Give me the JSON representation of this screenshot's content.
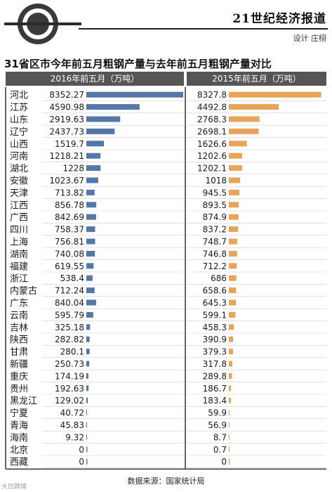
{
  "header": {
    "paper_name": "21世纪经济报道",
    "credit": "设计 庄栩",
    "watermark": "大凹跨境"
  },
  "chart_data": {
    "type": "bar",
    "title": "31省区市今年前五月粗钢产量与去年前五月粗钢产量对比",
    "categories": [
      "河北",
      "江苏",
      "山东",
      "辽宁",
      "山西",
      "河南",
      "湖北",
      "安徽",
      "天津",
      "江西",
      "广西",
      "四川",
      "上海",
      "湖南",
      "福建",
      "浙江",
      "内蒙古",
      "广东",
      "云南",
      "吉林",
      "陕西",
      "甘肃",
      "新疆",
      "重庆",
      "贵州",
      "黑龙江",
      "宁夏",
      "青海",
      "海南",
      "北京",
      "西藏"
    ],
    "series": [
      {
        "name": "2016年前五月（万吨）",
        "labels": [
          "8352.27",
          "4590.98",
          "2919.63",
          "2437.73",
          "1519.7",
          "1218.21",
          "1228",
          "1023.67",
          "713.82",
          "856.78",
          "842.69",
          "758.37",
          "756.81",
          "740.08",
          "619.55",
          "538.4",
          "712.24",
          "840.04",
          "595.79",
          "325.18",
          "282.82",
          "280.1",
          "250.73",
          "174.19",
          "192.63",
          "129.02",
          "40.72",
          "45.83",
          "9.32",
          "0",
          "0"
        ],
        "values": [
          8352.27,
          4590.98,
          2919.63,
          2437.73,
          1519.7,
          1218.21,
          1228,
          1023.67,
          713.82,
          856.78,
          842.69,
          758.37,
          756.81,
          740.08,
          619.55,
          538.4,
          712.24,
          840.04,
          595.79,
          325.18,
          282.82,
          280.1,
          250.73,
          174.19,
          192.63,
          129.02,
          40.72,
          45.83,
          9.32,
          0,
          0
        ],
        "color": "#5577a8"
      },
      {
        "name": "2015年前五月（万吨）",
        "labels": [
          "8327.8",
          "4492.8",
          "2768.3",
          "2698.1",
          "1626.6",
          "1202.6",
          "1202.1",
          "1018",
          "945.5",
          "893.5",
          "874.9",
          "837.2",
          "748.7",
          "746.8",
          "712.2",
          "686",
          "658.6",
          "645.3",
          "599.1",
          "458.3",
          "390.9",
          "379.3",
          "317.8",
          "289.8",
          "186.7",
          "183.4",
          "59.9",
          "56.9",
          "8.7",
          "0.7",
          "0"
        ],
        "values": [
          8327.8,
          4492.8,
          2768.3,
          2698.1,
          1626.6,
          1202.6,
          1202.1,
          1018,
          945.5,
          893.5,
          874.9,
          837.2,
          748.7,
          746.8,
          712.2,
          686,
          658.6,
          645.3,
          599.1,
          458.3,
          390.9,
          379.3,
          317.8,
          289.8,
          186.7,
          183.4,
          59.9,
          56.9,
          8.7,
          0.7,
          0
        ],
        "color": "#e8a45a"
      }
    ],
    "source": "数据来源：国家统计局"
  }
}
